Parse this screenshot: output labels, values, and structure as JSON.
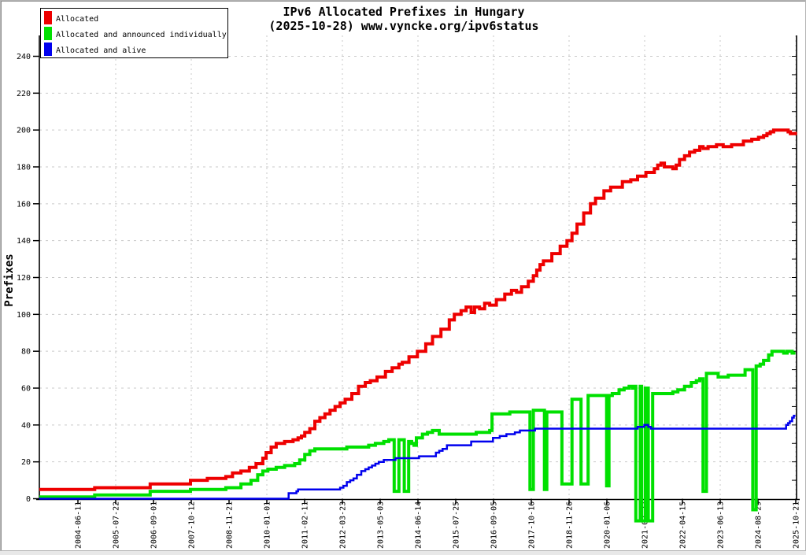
{
  "window": {
    "background": "#ffffff",
    "border_color": "#b4b4b4"
  },
  "header": {
    "title": "IPv6 Allocated Prefixes in Hungary",
    "subtitle": "(2025-10-28) www.vyncke.org/ipv6status"
  },
  "legend": {
    "items": [
      {
        "label": "Allocated",
        "color": "#ee0000"
      },
      {
        "label": "Allocated and announced individually",
        "color": "#00e000"
      },
      {
        "label": "Allocated and alive",
        "color": "#0000ee"
      }
    ]
  },
  "chart_data": {
    "type": "line",
    "title": "IPv6 Allocated Prefixes in Hungary",
    "subtitle": "(2025-10-28) www.vyncke.org/ipv6status",
    "ylabel": "Prefixes",
    "xlabel": "",
    "ylim": [
      0,
      250
    ],
    "y_ticks": [
      0,
      20,
      40,
      60,
      80,
      100,
      120,
      140,
      160,
      180,
      200,
      220,
      240
    ],
    "y_minor_tick_step": 10,
    "grid": "dashed light-gray; horizontal every 20 units, vertical at every other date tick",
    "legend_position": "top-left",
    "grid_color": "#c9c9c9",
    "axis_color": "#000000",
    "x_tick_labels": [
      "2004-06-11",
      "2005-07-22",
      "2006-09-01",
      "2007-10-12",
      "2008-11-21",
      "2010-01-01",
      "2011-02-11",
      "2012-03-23",
      "2013-05-03",
      "2014-06-14",
      "2015-07-25",
      "2016-09-05",
      "2017-10-16",
      "2018-11-26",
      "2020-01-06",
      "2021-02-27",
      "2022-04-15",
      "2023-06-13",
      "2024-08-29",
      "2025-10-21"
    ],
    "x_range_decimal_years": [
      2003.3,
      2025.83
    ],
    "series": [
      {
        "name": "Allocated",
        "color": "#ee0000",
        "width": 4,
        "points": [
          [
            2003.3,
            5
          ],
          [
            2004.95,
            6
          ],
          [
            2006.6,
            8
          ],
          [
            2007.8,
            10
          ],
          [
            2008.3,
            11
          ],
          [
            2008.85,
            12
          ],
          [
            2009.05,
            14
          ],
          [
            2009.3,
            15
          ],
          [
            2009.55,
            17
          ],
          [
            2009.75,
            19
          ],
          [
            2009.95,
            22
          ],
          [
            2010.05,
            25
          ],
          [
            2010.2,
            28
          ],
          [
            2010.35,
            30
          ],
          [
            2010.6,
            31
          ],
          [
            2010.85,
            32
          ],
          [
            2011.0,
            33
          ],
          [
            2011.1,
            34
          ],
          [
            2011.2,
            36
          ],
          [
            2011.35,
            38
          ],
          [
            2011.5,
            42
          ],
          [
            2011.65,
            44
          ],
          [
            2011.8,
            46
          ],
          [
            2011.95,
            48
          ],
          [
            2012.1,
            50
          ],
          [
            2012.25,
            52
          ],
          [
            2012.4,
            54
          ],
          [
            2012.6,
            57
          ],
          [
            2012.8,
            61
          ],
          [
            2013.0,
            63
          ],
          [
            2013.15,
            64
          ],
          [
            2013.35,
            66
          ],
          [
            2013.6,
            69
          ],
          [
            2013.8,
            71
          ],
          [
            2014.0,
            73
          ],
          [
            2014.1,
            74
          ],
          [
            2014.3,
            77
          ],
          [
            2014.55,
            80
          ],
          [
            2014.8,
            84
          ],
          [
            2015.0,
            88
          ],
          [
            2015.25,
            92
          ],
          [
            2015.5,
            97
          ],
          [
            2015.65,
            100
          ],
          [
            2015.85,
            102
          ],
          [
            2016.0,
            104
          ],
          [
            2016.15,
            101
          ],
          [
            2016.25,
            104
          ],
          [
            2016.4,
            103
          ],
          [
            2016.55,
            106
          ],
          [
            2016.7,
            105
          ],
          [
            2016.9,
            108
          ],
          [
            2017.15,
            111
          ],
          [
            2017.35,
            113
          ],
          [
            2017.5,
            112
          ],
          [
            2017.65,
            115
          ],
          [
            2017.85,
            118
          ],
          [
            2018.0,
            121
          ],
          [
            2018.1,
            124
          ],
          [
            2018.2,
            127
          ],
          [
            2018.3,
            129
          ],
          [
            2018.55,
            133
          ],
          [
            2018.8,
            137
          ],
          [
            2019.0,
            140
          ],
          [
            2019.15,
            144
          ],
          [
            2019.3,
            149
          ],
          [
            2019.5,
            155
          ],
          [
            2019.7,
            160
          ],
          [
            2019.85,
            163
          ],
          [
            2020.1,
            167
          ],
          [
            2020.3,
            169
          ],
          [
            2020.65,
            172
          ],
          [
            2020.9,
            173
          ],
          [
            2021.1,
            175
          ],
          [
            2021.35,
            177
          ],
          [
            2021.6,
            179
          ],
          [
            2021.7,
            181
          ],
          [
            2021.8,
            182
          ],
          [
            2021.9,
            180
          ],
          [
            2022.15,
            179
          ],
          [
            2022.25,
            181
          ],
          [
            2022.35,
            184
          ],
          [
            2022.5,
            186
          ],
          [
            2022.65,
            188
          ],
          [
            2022.8,
            189
          ],
          [
            2022.95,
            191
          ],
          [
            2023.05,
            190
          ],
          [
            2023.2,
            191
          ],
          [
            2023.45,
            192
          ],
          [
            2023.65,
            191
          ],
          [
            2023.9,
            192
          ],
          [
            2024.05,
            192
          ],
          [
            2024.25,
            194
          ],
          [
            2024.5,
            195
          ],
          [
            2024.7,
            196
          ],
          [
            2024.85,
            197
          ],
          [
            2024.95,
            198
          ],
          [
            2025.05,
            199
          ],
          [
            2025.15,
            200
          ],
          [
            2025.5,
            200
          ],
          [
            2025.58,
            199
          ],
          [
            2025.65,
            198
          ],
          [
            2025.8,
            199
          ]
        ]
      },
      {
        "name": "Allocated and announced individually",
        "color": "#00e000",
        "width": 4,
        "points": [
          [
            2003.3,
            1
          ],
          [
            2004.95,
            2
          ],
          [
            2006.6,
            4
          ],
          [
            2007.8,
            5
          ],
          [
            2008.85,
            6
          ],
          [
            2009.3,
            8
          ],
          [
            2009.6,
            10
          ],
          [
            2009.8,
            13
          ],
          [
            2009.95,
            15
          ],
          [
            2010.1,
            16
          ],
          [
            2010.35,
            17
          ],
          [
            2010.6,
            18
          ],
          [
            2010.9,
            19
          ],
          [
            2011.05,
            21
          ],
          [
            2011.2,
            24
          ],
          [
            2011.35,
            26
          ],
          [
            2011.5,
            27
          ],
          [
            2012.3,
            27
          ],
          [
            2012.45,
            28
          ],
          [
            2013.1,
            29
          ],
          [
            2013.3,
            30
          ],
          [
            2013.55,
            31
          ],
          [
            2013.7,
            32
          ],
          [
            2013.8,
            32
          ],
          [
            2013.86,
            4
          ],
          [
            2013.97,
            4
          ],
          [
            2014.0,
            32
          ],
          [
            2014.13,
            32
          ],
          [
            2014.16,
            4
          ],
          [
            2014.26,
            4
          ],
          [
            2014.29,
            31
          ],
          [
            2014.38,
            30
          ],
          [
            2014.45,
            29
          ],
          [
            2014.52,
            33
          ],
          [
            2014.7,
            35
          ],
          [
            2014.85,
            36
          ],
          [
            2015.0,
            37
          ],
          [
            2015.2,
            35
          ],
          [
            2015.6,
            35
          ],
          [
            2016.1,
            35
          ],
          [
            2016.3,
            36
          ],
          [
            2016.7,
            37
          ],
          [
            2016.77,
            46
          ],
          [
            2017.0,
            46
          ],
          [
            2017.3,
            47
          ],
          [
            2017.6,
            47
          ],
          [
            2017.88,
            47
          ],
          [
            2017.9,
            5
          ],
          [
            2017.97,
            5
          ],
          [
            2018.0,
            48
          ],
          [
            2018.3,
            48
          ],
          [
            2018.33,
            5
          ],
          [
            2018.38,
            5
          ],
          [
            2018.4,
            47
          ],
          [
            2018.8,
            47
          ],
          [
            2018.85,
            8
          ],
          [
            2019.12,
            8
          ],
          [
            2019.15,
            54
          ],
          [
            2019.38,
            54
          ],
          [
            2019.42,
            8
          ],
          [
            2019.6,
            8
          ],
          [
            2019.63,
            56
          ],
          [
            2020.15,
            56
          ],
          [
            2020.18,
            7
          ],
          [
            2020.22,
            7
          ],
          [
            2020.25,
            56
          ],
          [
            2020.35,
            57
          ],
          [
            2020.55,
            59
          ],
          [
            2020.7,
            60
          ],
          [
            2020.85,
            61
          ],
          [
            2020.95,
            60
          ],
          [
            2021.0,
            61
          ],
          [
            2021.05,
            -12
          ],
          [
            2021.15,
            -12
          ],
          [
            2021.18,
            61
          ],
          [
            2021.22,
            -12
          ],
          [
            2021.3,
            -12
          ],
          [
            2021.33,
            60
          ],
          [
            2021.42,
            -12
          ],
          [
            2021.52,
            -12
          ],
          [
            2021.55,
            57
          ],
          [
            2022.0,
            57
          ],
          [
            2022.15,
            58
          ],
          [
            2022.3,
            59
          ],
          [
            2022.5,
            61
          ],
          [
            2022.7,
            63
          ],
          [
            2022.85,
            64
          ],
          [
            2022.95,
            65
          ],
          [
            2023.03,
            65
          ],
          [
            2023.05,
            4
          ],
          [
            2023.12,
            4
          ],
          [
            2023.15,
            68
          ],
          [
            2023.35,
            68
          ],
          [
            2023.5,
            66
          ],
          [
            2023.7,
            66
          ],
          [
            2023.8,
            67
          ],
          [
            2024.2,
            67
          ],
          [
            2024.3,
            70
          ],
          [
            2024.5,
            70
          ],
          [
            2024.53,
            -6
          ],
          [
            2024.6,
            -6
          ],
          [
            2024.63,
            72
          ],
          [
            2024.75,
            73
          ],
          [
            2024.85,
            75
          ],
          [
            2025.0,
            78
          ],
          [
            2025.1,
            80
          ],
          [
            2025.35,
            80
          ],
          [
            2025.45,
            79
          ],
          [
            2025.55,
            80
          ],
          [
            2025.7,
            79
          ],
          [
            2025.8,
            79
          ]
        ]
      },
      {
        "name": "Allocated and alive",
        "color": "#0000ee",
        "width": 2.5,
        "points": [
          [
            2003.3,
            0
          ],
          [
            2010.68,
            0
          ],
          [
            2010.72,
            3
          ],
          [
            2010.95,
            4
          ],
          [
            2011.0,
            5
          ],
          [
            2012.15,
            5
          ],
          [
            2012.25,
            6
          ],
          [
            2012.35,
            7
          ],
          [
            2012.45,
            9
          ],
          [
            2012.55,
            10
          ],
          [
            2012.65,
            11
          ],
          [
            2012.75,
            13
          ],
          [
            2012.88,
            15
          ],
          [
            2013.0,
            16
          ],
          [
            2013.1,
            17
          ],
          [
            2013.2,
            18
          ],
          [
            2013.3,
            19
          ],
          [
            2013.4,
            20
          ],
          [
            2013.55,
            21
          ],
          [
            2013.9,
            22
          ],
          [
            2014.4,
            22
          ],
          [
            2014.6,
            23
          ],
          [
            2015.0,
            23
          ],
          [
            2015.1,
            25
          ],
          [
            2015.2,
            26
          ],
          [
            2015.3,
            27
          ],
          [
            2015.43,
            29
          ],
          [
            2016.1,
            29
          ],
          [
            2016.15,
            31
          ],
          [
            2016.65,
            31
          ],
          [
            2016.8,
            33
          ],
          [
            2016.95,
            33
          ],
          [
            2017.0,
            34
          ],
          [
            2017.2,
            35
          ],
          [
            2017.45,
            36
          ],
          [
            2017.6,
            37
          ],
          [
            2018.05,
            38
          ],
          [
            2021.05,
            38
          ],
          [
            2021.1,
            39
          ],
          [
            2021.3,
            40
          ],
          [
            2021.42,
            39
          ],
          [
            2021.5,
            38
          ],
          [
            2025.45,
            38
          ],
          [
            2025.52,
            40
          ],
          [
            2025.58,
            41
          ],
          [
            2025.63,
            42
          ],
          [
            2025.7,
            44
          ],
          [
            2025.75,
            45
          ],
          [
            2025.8,
            45
          ]
        ]
      }
    ]
  }
}
